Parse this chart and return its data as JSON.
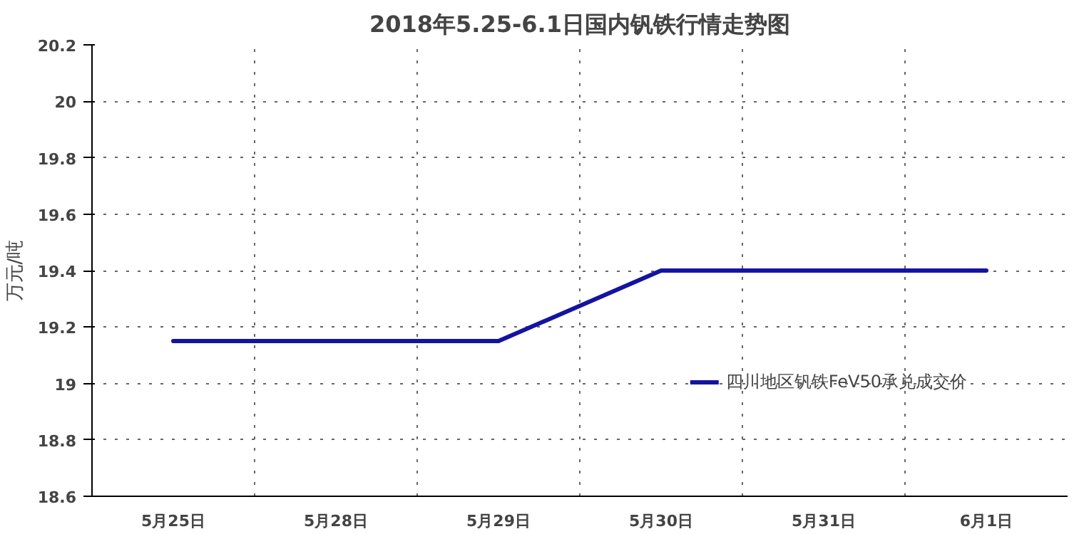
{
  "chart_data": {
    "type": "line",
    "title": "2018年5.25-6.1日国内钒铁行情走势图",
    "ylabel": "万元/吨",
    "categories": [
      "5月25日",
      "5月28日",
      "5月29日",
      "5月30日",
      "5月31日",
      "6月1日"
    ],
    "series": [
      {
        "name": "四川地区钒铁FeV50承兑成交价",
        "color": "#1414a0",
        "values": [
          19.15,
          19.15,
          19.15,
          19.4,
          19.4,
          19.4
        ]
      }
    ],
    "ylim": [
      18.6,
      20.2
    ],
    "yticks": [
      18.6,
      18.8,
      19,
      19.2,
      19.4,
      19.6,
      19.8,
      20,
      20.2
    ],
    "grid": true,
    "legend": "bottom right",
    "marker": "none",
    "line_style": "solid"
  }
}
